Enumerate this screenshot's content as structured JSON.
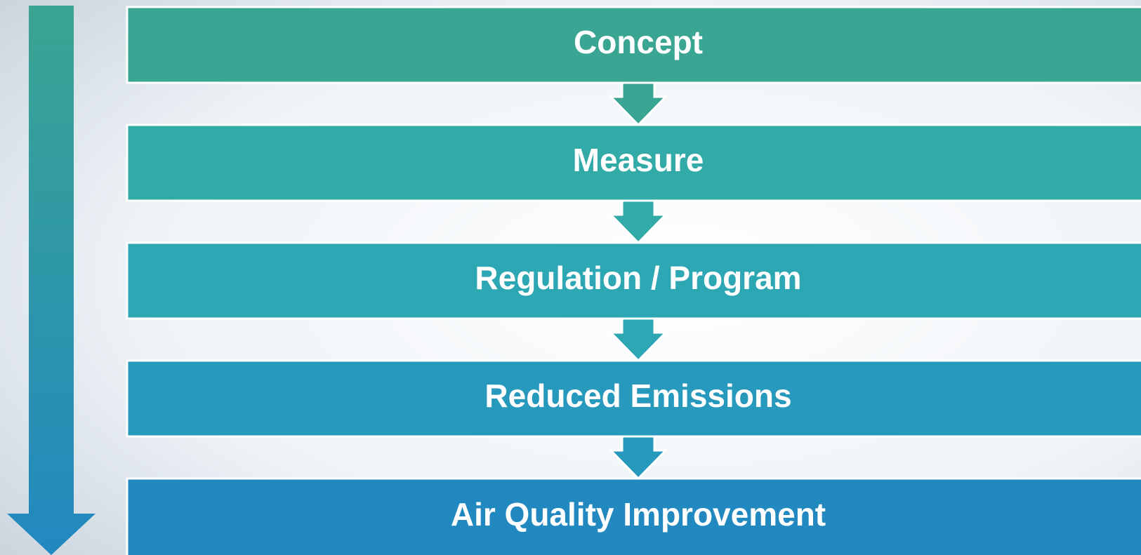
{
  "steps": [
    "Concept",
    "Measure",
    "Regulation / Program",
    "Reduced Emissions",
    "Air Quality Improvement"
  ]
}
